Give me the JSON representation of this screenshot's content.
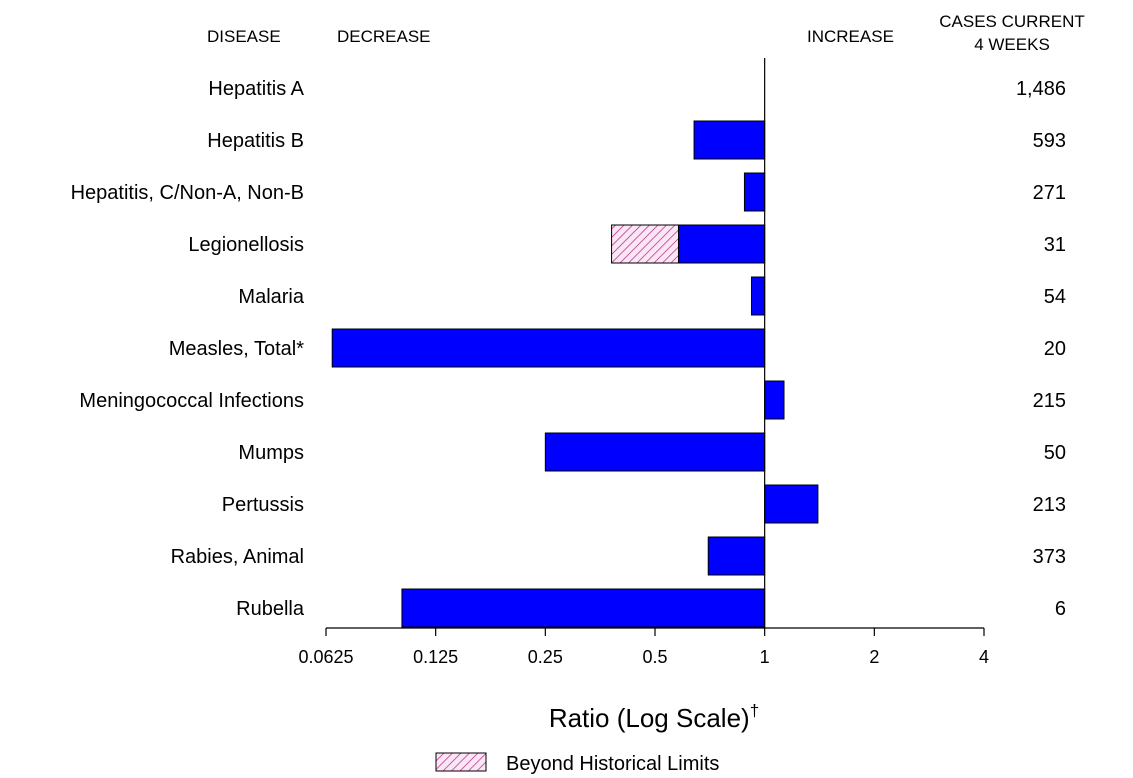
{
  "headers": {
    "disease": "DISEASE",
    "decrease": "DECREASE",
    "increase": "INCREASE",
    "cases_line1": "CASES CURRENT",
    "cases_line2": "4 WEEKS"
  },
  "legend": {
    "label": "Beyond Historical Limits"
  },
  "colors": {
    "bar": "#0000ff",
    "hatch": "#b0207a",
    "hatch_bg": "#fbe6f6"
  },
  "chart_data": {
    "type": "bar",
    "orientation": "horizontal",
    "scale": "log2",
    "xlabel": "Ratio (Log Scale)",
    "xlabel_sup": "†",
    "xlim": [
      0.0625,
      4
    ],
    "ticks": [
      {
        "value": 0.0625,
        "label": "0.0625"
      },
      {
        "value": 0.125,
        "label": "0.125"
      },
      {
        "value": 0.25,
        "label": "0.25"
      },
      {
        "value": 0.5,
        "label": "0.5"
      },
      {
        "value": 1,
        "label": "1"
      },
      {
        "value": 2,
        "label": "2"
      },
      {
        "value": 4,
        "label": "4"
      }
    ],
    "categories": [
      "Hepatitis A",
      "Hepatitis B",
      "Hepatitis, C/Non-A, Non-B",
      "Legionellosis",
      "Malaria",
      "Measles, Total*",
      "Meningococcal Infections",
      "Mumps",
      "Pertussis",
      "Rabies, Animal",
      "Rubella"
    ],
    "values": [
      1.0,
      0.64,
      0.88,
      0.58,
      0.92,
      0.065,
      1.13,
      0.25,
      1.4,
      0.7,
      0.101
    ],
    "beyond_limits": [
      null,
      null,
      null,
      0.38,
      null,
      null,
      null,
      null,
      null,
      null,
      null
    ],
    "cases": [
      "1,486",
      "593",
      "271",
      "31",
      "54",
      "20",
      "215",
      "50",
      "213",
      "373",
      "6"
    ]
  }
}
